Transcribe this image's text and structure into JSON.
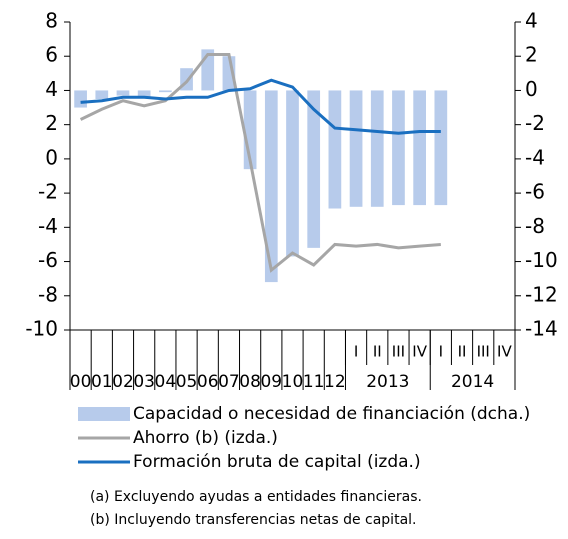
{
  "chart_data": {
    "type": "bar-line",
    "categories": [
      "00",
      "01",
      "02",
      "03",
      "04",
      "05",
      "06",
      "07",
      "08",
      "09",
      "10",
      "11",
      "12",
      "I",
      "II",
      "III",
      "IV",
      "I",
      "II",
      "III",
      "IV"
    ],
    "category_groups": [
      {
        "label": "2013",
        "from": 13,
        "count": 4
      },
      {
        "label": "2014",
        "from": 17,
        "count": 4
      }
    ],
    "series": [
      {
        "name": "Capacidad o necesidad de financiación  (dcha.)",
        "kind": "bar",
        "axis": "y2",
        "color": "#b7cbeb",
        "values": [
          -1.0,
          -0.5,
          -0.3,
          -0.4,
          -0.1,
          1.3,
          2.4,
          2.0,
          -4.6,
          -11.2,
          -9.7,
          -9.2,
          -6.9,
          -6.8,
          -6.8,
          -6.7,
          -6.7,
          -6.7,
          null,
          null,
          null
        ]
      },
      {
        "name": "Ahorro (b) (izda.)",
        "kind": "line",
        "color": "#a6a6a6",
        "values": [
          2.3,
          2.9,
          3.4,
          3.1,
          3.4,
          4.5,
          6.1,
          6.1,
          -0.1,
          -6.5,
          -5.5,
          -6.2,
          -5.0,
          -5.1,
          -5.0,
          -5.2,
          -5.1,
          -5.0,
          null,
          null,
          null
        ]
      },
      {
        "name": "Formación bruta de capital (izda.)",
        "kind": "line",
        "color": "#1a6fc0",
        "values": [
          3.3,
          3.4,
          3.6,
          3.6,
          3.5,
          3.6,
          3.6,
          4.0,
          4.1,
          4.6,
          4.2,
          2.9,
          1.8,
          1.7,
          1.6,
          1.5,
          1.6,
          1.6,
          null,
          null,
          null
        ]
      }
    ],
    "ylim": [
      -10,
      8
    ],
    "yticks": [
      -10,
      -8,
      -6,
      -4,
      -2,
      0,
      2,
      4,
      6,
      8
    ],
    "y2lim": [
      -14,
      4
    ],
    "y2ticks": [
      -14,
      -12,
      -10,
      -8,
      -6,
      -4,
      -2,
      0,
      2,
      4
    ],
    "notes": [
      "(a) Excluyendo ayudas a entidades financieras.",
      "(b) Incluyendo transferencias netas de capital."
    ]
  }
}
